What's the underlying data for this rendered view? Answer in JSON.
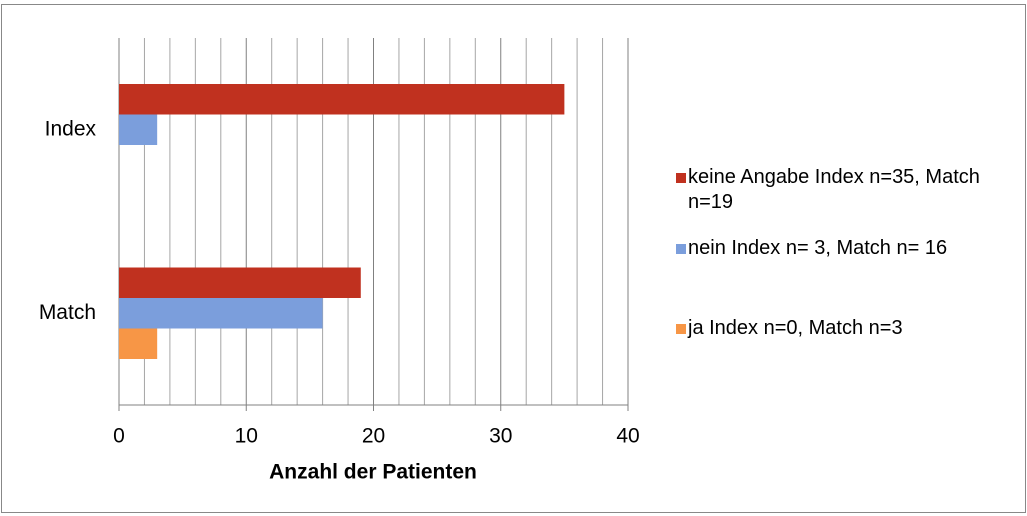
{
  "chart_data": {
    "type": "bar",
    "orientation": "horizontal",
    "x_label": "Anzahl der Patienten",
    "categories": [
      "Index",
      "Match"
    ],
    "series": [
      {
        "name": "keine Angabe Index n=35, Match n=19",
        "color": "#c0311f",
        "values": [
          35,
          19
        ]
      },
      {
        "name": "nein Index n= 3, Match n= 16",
        "color": "#7b9edc",
        "values": [
          3,
          16
        ]
      },
      {
        "name": "ja Index n=0, Match n=3",
        "color": "#f79646",
        "values": [
          0,
          3
        ]
      }
    ],
    "xlim": [
      0,
      40
    ],
    "xticks": [
      0,
      10,
      20,
      30,
      40
    ],
    "minor_xticks": [
      2,
      4,
      6,
      8,
      12,
      14,
      16,
      18,
      22,
      24,
      26,
      28,
      32,
      34,
      36,
      38
    ],
    "grid": true,
    "legend": "right"
  }
}
